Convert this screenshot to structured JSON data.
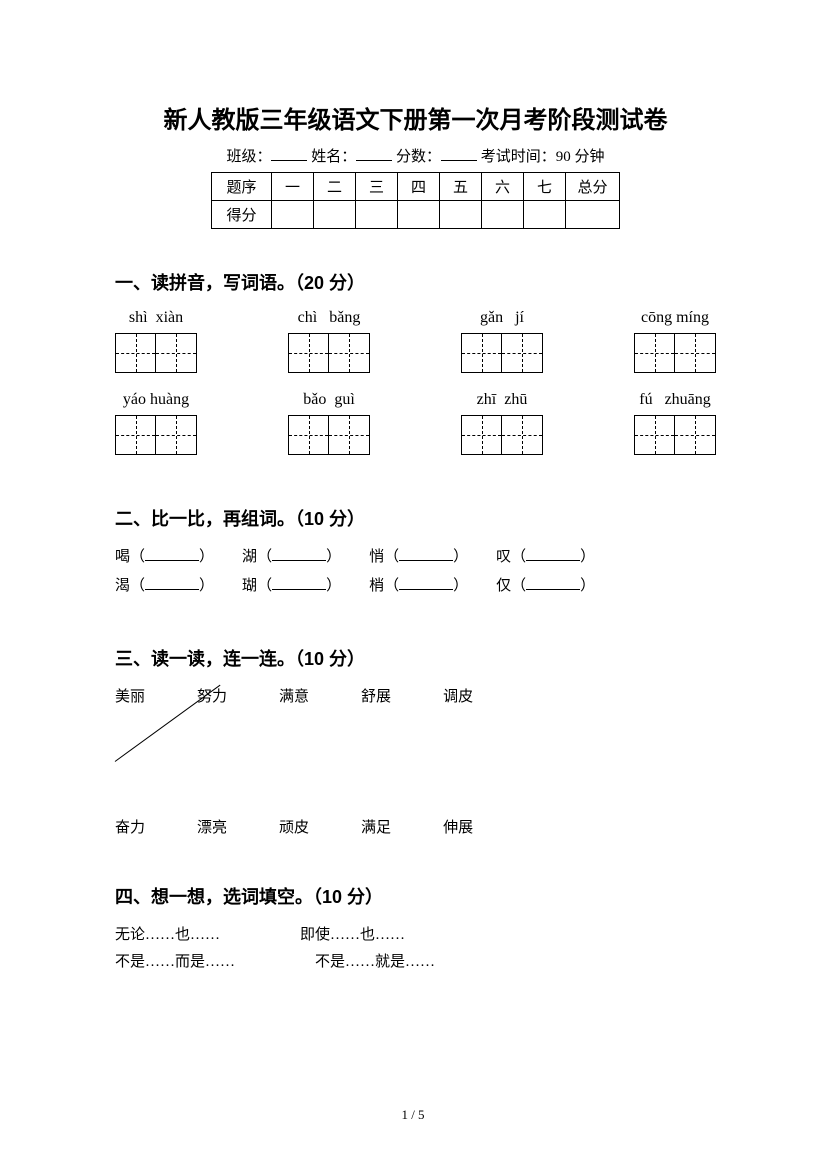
{
  "title": "新人教版三年级语文下册第一次月考阶段测试卷",
  "meta": {
    "class_label": "班级：",
    "name_label": "姓名：",
    "score_label": "分数：",
    "time_label": "考试时间：90 分钟"
  },
  "score_table": {
    "row1": [
      "题序",
      "一",
      "二",
      "三",
      "四",
      "五",
      "六",
      "七",
      "总分"
    ],
    "row2_head": "得分"
  },
  "sec1": {
    "heading": "一、读拼音，写词语。（20 分）",
    "row1": [
      "shì  xiàn",
      "chì   bǎng",
      "gǎn   jí",
      "cōng míng"
    ],
    "row2": [
      "yáo huàng",
      "bǎo  guì",
      "zhī  zhū",
      "fú   zhuāng"
    ]
  },
  "sec2": {
    "heading": "二、比一比，再组词。（10 分）",
    "row1": [
      "喝",
      "湖",
      "悄",
      "叹"
    ],
    "row2": [
      "渴",
      "瑚",
      "梢",
      "仅"
    ]
  },
  "sec3": {
    "heading": "三、读一读，连一连。（10 分）",
    "top": [
      "美丽",
      "努力",
      "满意",
      "舒展",
      "调皮"
    ],
    "bottom": [
      "奋力",
      "漂亮",
      "顽皮",
      "满足",
      "伸展"
    ]
  },
  "sec4": {
    "heading": "四、想一想，选词填空。（10 分）",
    "row1": [
      "无论……也……",
      "即使……也……"
    ],
    "row2": [
      "不是……而是……",
      "不是……就是……"
    ]
  },
  "pagination": "1 / 5"
}
